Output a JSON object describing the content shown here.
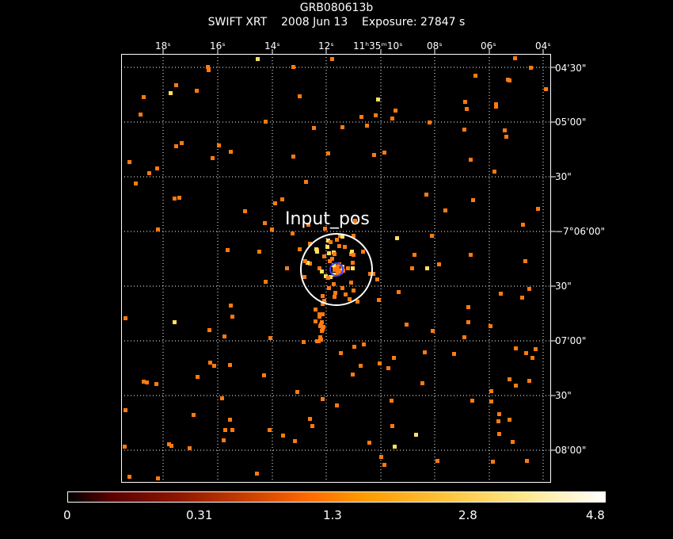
{
  "header": {
    "title": "GRB080613b",
    "instrument": "SWIFT XRT",
    "date": "2008 Jun 13",
    "exposure": "Exposure: 27847 s"
  },
  "image": {
    "source_label": "Input_pos",
    "colors": {
      "background": "#000000",
      "grid": "#ffffff",
      "circle": "#ffffff",
      "inner_circle": "#3b3bff",
      "event_orange": "#ff7a10",
      "event_yellow": "#ffe060"
    }
  },
  "ra_labels": [
    "18ˢ",
    "16ˢ",
    "14ˢ",
    "12ˢ",
    "11ʰ35ᵐ10ˢ",
    "08ˢ",
    "06ˢ",
    "04ˢ"
  ],
  "dec_labels": [
    "04'30\"",
    "05'00\"",
    "30\"",
    "−7°06'00\"",
    "30\"",
    "07'00\"",
    "30\"",
    "08'00\""
  ],
  "colorbar": {
    "ticks": [
      "0",
      "0.31",
      "1.3",
      "2.8",
      "4.8"
    ],
    "min": 0,
    "max": 4.8
  }
}
